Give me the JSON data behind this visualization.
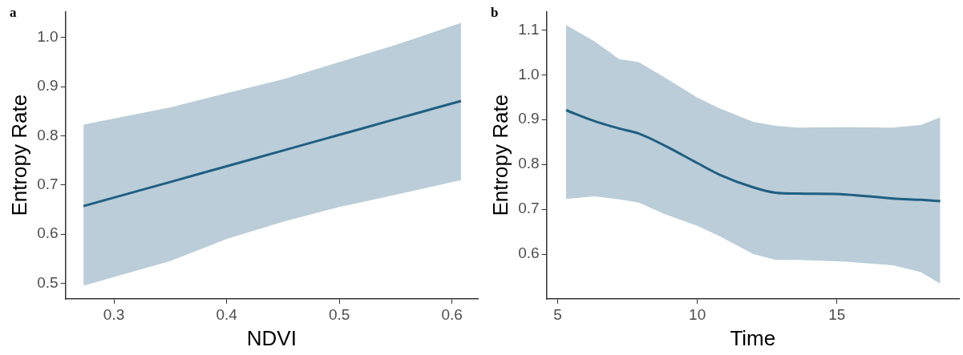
{
  "chart_data": [
    {
      "type": "line",
      "title": "a",
      "xlabel": "NDVI",
      "ylabel": "Entropy Rate",
      "xlim": [
        0.257,
        0.623
      ],
      "ylim": [
        0.468,
        1.053
      ],
      "xticks": [
        {
          "value": 0.3,
          "label": "0.3"
        },
        {
          "value": 0.4,
          "label": "0.4"
        },
        {
          "value": 0.5,
          "label": "0.5"
        },
        {
          "value": 0.6,
          "label": "0.6"
        }
      ],
      "yticks": [
        {
          "value": 0.5,
          "label": "0.5"
        },
        {
          "value": 0.6,
          "label": "0.6"
        },
        {
          "value": 0.7,
          "label": "0.7"
        },
        {
          "value": 0.8,
          "label": "0.8"
        },
        {
          "value": 0.9,
          "label": "0.9"
        },
        {
          "value": 1.0,
          "label": "1.0"
        }
      ],
      "series": [
        {
          "color": "#1f5f82",
          "x": [
            0.273,
            0.35,
            0.4,
            0.45,
            0.5,
            0.55,
            0.608
          ],
          "values": [
            0.657,
            0.706,
            0.738,
            0.77,
            0.802,
            0.834,
            0.871
          ],
          "lower": [
            0.495,
            0.545,
            0.59,
            0.625,
            0.655,
            0.68,
            0.71
          ],
          "upper": [
            0.823,
            0.858,
            0.887,
            0.915,
            0.95,
            0.985,
            1.03
          ]
        }
      ]
    },
    {
      "type": "line",
      "title": "b",
      "xlabel": "Time",
      "ylabel": "Entropy Rate",
      "xlim": [
        4.6,
        19.37
      ],
      "ylim": [
        0.5,
        1.141
      ],
      "xticks": [
        5,
        10,
        15
      ],
      "yticks": [
        {
          "value": 0.6,
          "label": "0.6"
        },
        {
          "value": 0.7,
          "label": "0.7"
        },
        {
          "value": 0.8,
          "label": "0.8"
        },
        {
          "value": 0.9,
          "label": "0.9"
        },
        {
          "value": 1.0,
          "label": "1.0"
        },
        {
          "value": 1.1,
          "label": "1.1"
        }
      ],
      "series": [
        {
          "color": "#1f5f82",
          "x": [
            5.3,
            6.3,
            7.2,
            7.9,
            8.8,
            10,
            10.8,
            12,
            12.8,
            13.6,
            15.3,
            17,
            18,
            18.7
          ],
          "values": [
            0.921,
            0.897,
            0.88,
            0.869,
            0.843,
            0.803,
            0.777,
            0.749,
            0.737,
            0.735,
            0.733,
            0.724,
            0.721,
            0.718
          ],
          "lower": [
            0.723,
            0.729,
            0.722,
            0.715,
            0.69,
            0.663,
            0.64,
            0.6,
            0.587,
            0.587,
            0.583,
            0.575,
            0.56,
            0.534
          ],
          "upper": [
            1.111,
            1.075,
            1.035,
            1.028,
            0.995,
            0.949,
            0.925,
            0.895,
            0.886,
            0.882,
            0.883,
            0.882,
            0.888,
            0.905
          ]
        }
      ]
    }
  ]
}
